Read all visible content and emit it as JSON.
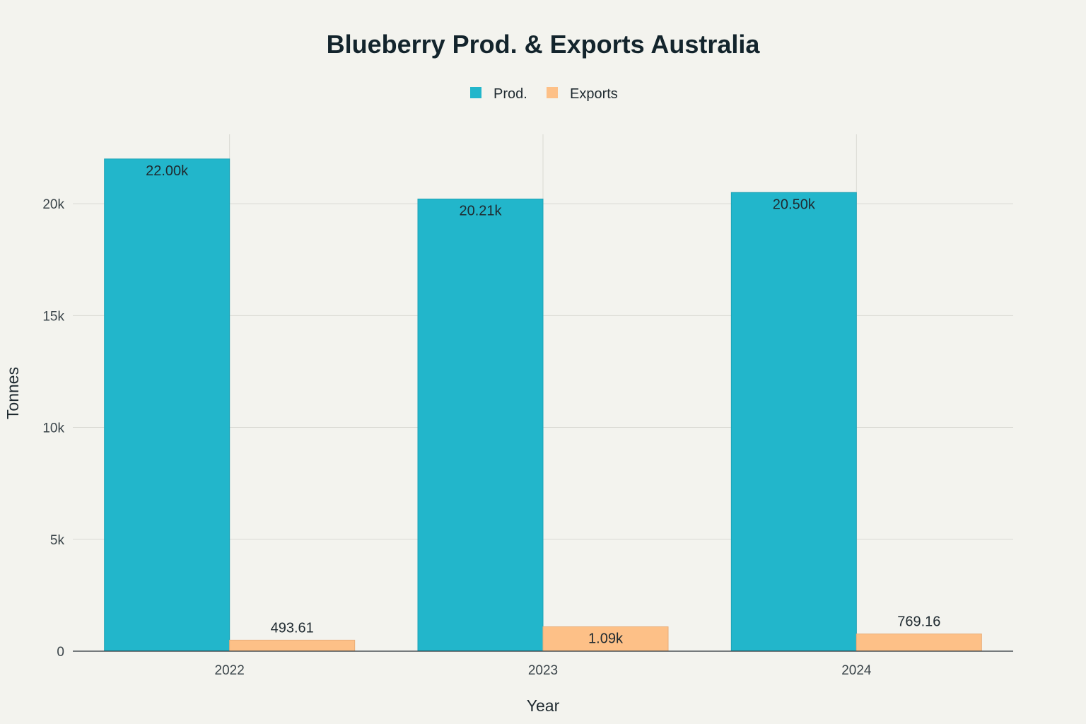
{
  "chart_data": {
    "type": "bar",
    "title": "Blueberry Prod. & Exports Australia",
    "xlabel": "Year",
    "ylabel": "Tonnes",
    "categories": [
      "2022",
      "2023",
      "2024"
    ],
    "series": [
      {
        "name": "Prod.",
        "color": "#22b6cb",
        "values": [
          22000,
          20210,
          20500
        ],
        "labels": [
          "22.00k",
          "20.21k",
          "20.50k"
        ]
      },
      {
        "name": "Exports",
        "color": "#fdc087",
        "values": [
          493.61,
          1090,
          769.16
        ],
        "labels": [
          "493.61",
          "1.09k",
          "769.16"
        ]
      }
    ],
    "ylim": [
      0,
      23100
    ],
    "yticks": [
      0,
      5000,
      10000,
      15000,
      20000
    ],
    "ytick_labels": [
      "0",
      "5k",
      "10k",
      "15k",
      "20k"
    ],
    "legend_position": "top-center",
    "grid": true
  }
}
